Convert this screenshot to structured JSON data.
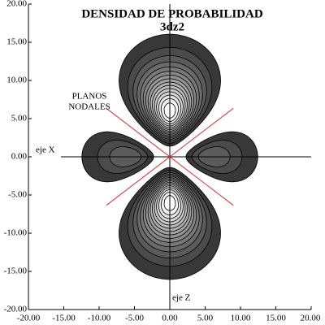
{
  "chart_data": {
    "type": "contour",
    "title": "DENSIDAD DE PROBABILIDAD",
    "subtitle": "3dz2",
    "annotations": [
      "PLANOS",
      "NODALES"
    ],
    "xlabel": "eje X",
    "ylabel": "eje Z",
    "xlim": [
      -20,
      20
    ],
    "ylim": [
      -20,
      20
    ],
    "xticks": [
      {
        "value": -20,
        "label": "-20.00"
      },
      {
        "value": -15,
        "label": "-15.00"
      },
      {
        "value": -10,
        "label": "-10.00"
      },
      {
        "value": -5,
        "label": "-5.00"
      },
      {
        "value": 0,
        "label": "0.00"
      },
      {
        "value": 5,
        "label": "5.00"
      },
      {
        "value": 10,
        "label": "10.00"
      },
      {
        "value": 15,
        "label": "15.00"
      },
      {
        "value": 20,
        "label": "20.00"
      }
    ],
    "yticks": [
      {
        "value": -20,
        "label": "-20.00"
      },
      {
        "value": -15,
        "label": "-15.00"
      },
      {
        "value": -10,
        "label": "-10.00"
      },
      {
        "value": -5,
        "label": "-5.00"
      },
      {
        "value": 0,
        "label": "0.00"
      },
      {
        "value": 5,
        "label": "5.00"
      },
      {
        "value": 10,
        "label": "10.00"
      },
      {
        "value": 15,
        "label": "15.00"
      },
      {
        "value": 20,
        "label": "20.00"
      }
    ],
    "levels": [
      6,
      12,
      18,
      24,
      30,
      36,
      42,
      48,
      54,
      60,
      66,
      72,
      78,
      84,
      90
    ],
    "grid": false
  }
}
